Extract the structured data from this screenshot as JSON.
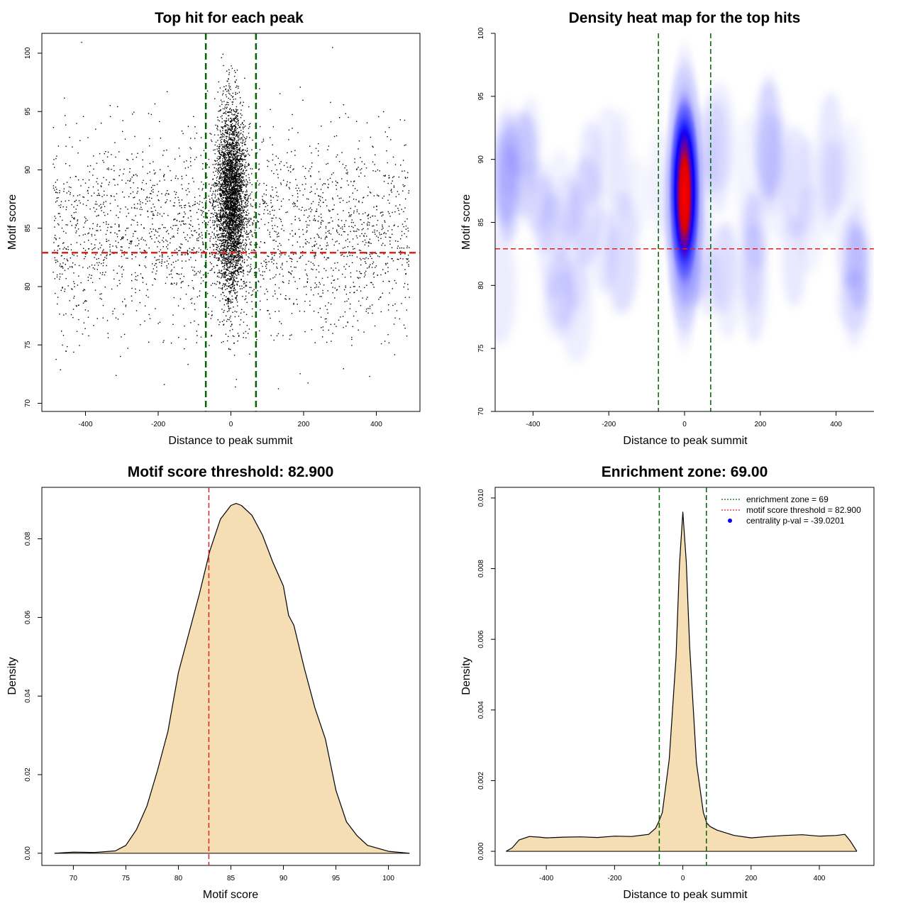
{
  "figure": {
    "colors": {
      "enrichment_line": "#006400",
      "threshold_line": "#dd2222",
      "density_fill": "#f5deb3",
      "heat_low": "#ffffff",
      "heat_mid": "#0000ff",
      "heat_high": "#ff0000",
      "point": "#000000",
      "centrality_dot": "#0000ff"
    }
  },
  "chart_data": [
    {
      "type": "scatter",
      "title": "Top hit for each peak",
      "xlabel": "Distance to peak summit",
      "ylabel": "Motif score",
      "xlim": [
        -520,
        520
      ],
      "ylim": [
        69.3,
        101.7
      ],
      "xticks": [
        -400,
        -200,
        0,
        200,
        400
      ],
      "yticks": [
        70,
        75,
        80,
        85,
        90,
        95,
        100
      ],
      "enrichment_zone": 69,
      "motif_score_threshold": 82.9,
      "background": {
        "x_range": [
          -490,
          490
        ],
        "y_center": 84.5,
        "y_sd": 4.2,
        "approx_points": 2600
      },
      "central": {
        "x_center": 0,
        "x_sd": 20,
        "y_center": 87.5,
        "y_sd": 4.0,
        "approx_points": 3800
      },
      "grid": false
    },
    {
      "type": "heatmap",
      "title": "Density heat map for the top hits",
      "xlabel": "Distance to peak summit",
      "ylabel": "Motif score",
      "xlim": [
        -500,
        500
      ],
      "ylim": [
        70,
        100
      ],
      "xticks": [
        -400,
        -200,
        0,
        200,
        400
      ],
      "yticks": [
        70,
        75,
        80,
        85,
        90,
        95,
        100
      ],
      "enrichment_zone": 69,
      "motif_score_threshold": 82.9,
      "peak": {
        "x": 0,
        "y": 87.5
      },
      "grid": false
    },
    {
      "type": "area",
      "title": "Motif score threshold: 82.900",
      "xlabel": "Motif score",
      "ylabel": "Density",
      "xlim": [
        67,
        103
      ],
      "ylim": [
        -0.0031,
        0.0931
      ],
      "xticks": [
        70,
        75,
        80,
        85,
        90,
        95,
        100
      ],
      "yticks": [
        0.0,
        0.02,
        0.04,
        0.06,
        0.08
      ],
      "ytick_labels": [
        "0.00",
        "0.02",
        "0.04",
        "0.06",
        "0.08"
      ],
      "threshold": 82.9,
      "x": [
        68.2,
        70,
        72,
        74,
        75,
        76,
        77,
        78,
        79,
        80,
        81,
        82,
        83,
        84,
        85,
        85.5,
        86,
        87,
        88,
        89,
        90,
        90.5,
        91,
        92,
        93,
        94,
        95,
        96,
        97,
        98,
        100,
        102
      ],
      "y": [
        0.0,
        0.0003,
        0.0002,
        0.0006,
        0.002,
        0.006,
        0.012,
        0.021,
        0.031,
        0.046,
        0.056,
        0.066,
        0.077,
        0.085,
        0.0885,
        0.089,
        0.0885,
        0.086,
        0.081,
        0.074,
        0.068,
        0.0605,
        0.058,
        0.047,
        0.037,
        0.029,
        0.016,
        0.008,
        0.0045,
        0.002,
        0.0005,
        0.0
      ],
      "grid": false
    },
    {
      "type": "area",
      "title": "Enrichment zone: 69.00",
      "xlabel": "Distance to peak summit",
      "ylabel": "Density",
      "xlim": [
        -550,
        560
      ],
      "ylim": [
        -0.0004,
        0.0103
      ],
      "xticks": [
        -400,
        -200,
        0,
        200,
        400
      ],
      "yticks": [
        0.0,
        0.002,
        0.004,
        0.006,
        0.008,
        0.01
      ],
      "ytick_labels": [
        "0.000",
        "0.002",
        "0.004",
        "0.006",
        "0.008",
        "0.010"
      ],
      "enrichment_zone": 69,
      "x": [
        -518,
        -500,
        -480,
        -450,
        -420,
        -400,
        -350,
        -300,
        -250,
        -200,
        -150,
        -100,
        -80,
        -70,
        -60,
        -40,
        -20,
        -10,
        0,
        10,
        20,
        40,
        60,
        70,
        80,
        100,
        150,
        200,
        250,
        300,
        350,
        400,
        450,
        475,
        490,
        510
      ],
      "y": [
        0.0,
        0.0001,
        0.00032,
        0.00042,
        0.0004,
        0.00038,
        0.0004,
        0.00041,
        0.00039,
        0.00043,
        0.00042,
        0.00048,
        0.00065,
        0.00085,
        0.0011,
        0.0026,
        0.0055,
        0.0081,
        0.0096,
        0.0082,
        0.0058,
        0.0025,
        0.0011,
        0.0008,
        0.0007,
        0.0006,
        0.00045,
        0.00038,
        0.00042,
        0.00045,
        0.00047,
        0.00043,
        0.00045,
        0.00048,
        0.0003,
        0.0
      ],
      "legend": {
        "position": "top-right",
        "entries": [
          {
            "label": "enrichment zone = 69",
            "style": "dotted-line",
            "color": "#006400"
          },
          {
            "label": "motif score threshold = 82.900",
            "style": "dotted-line",
            "color": "#dd2222"
          },
          {
            "label": "centrality p-val = -39.0201",
            "style": "dot",
            "color": "#0000ff"
          }
        ]
      },
      "grid": false
    }
  ]
}
